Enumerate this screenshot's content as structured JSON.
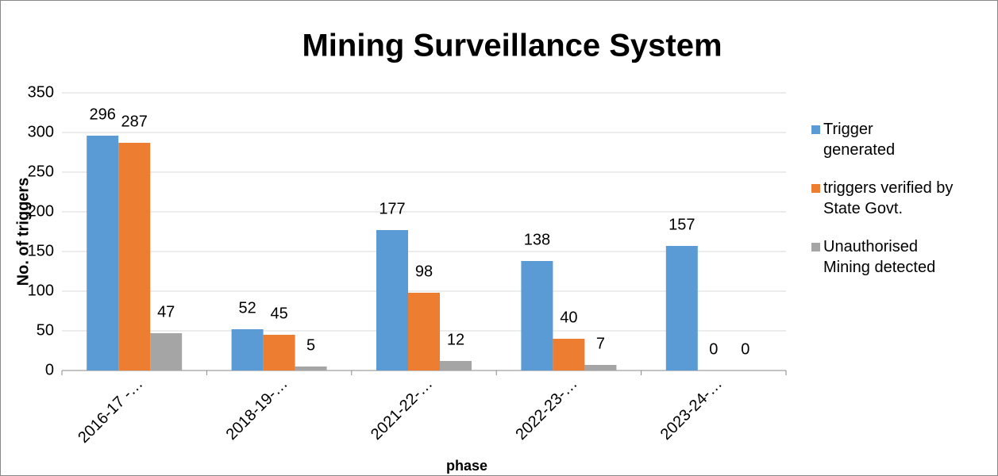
{
  "chart_data": {
    "type": "bar",
    "title": "Mining Surveillance System",
    "x_label": "phase",
    "y_label": "No. of triggers",
    "categories": [
      "2016-17 -…",
      "2018-19-…",
      "2021-22-…",
      "2022-23-…",
      "2023-24-…"
    ],
    "series": [
      {
        "name": "Trigger generated",
        "color": "#5b9bd5",
        "values": [
          296,
          52,
          177,
          138,
          157
        ]
      },
      {
        "name": "triggers verified by State Govt.",
        "color": "#ed7d31",
        "values": [
          287,
          45,
          98,
          40,
          0
        ]
      },
      {
        "name": "Unauthorised Mining detected",
        "color": "#a5a5a5",
        "values": [
          47,
          5,
          12,
          7,
          0
        ]
      }
    ],
    "ylim": [
      0,
      350
    ],
    "yticks": [
      0,
      50,
      100,
      150,
      200,
      250,
      300,
      350
    ],
    "grid": true,
    "legend": "right"
  }
}
